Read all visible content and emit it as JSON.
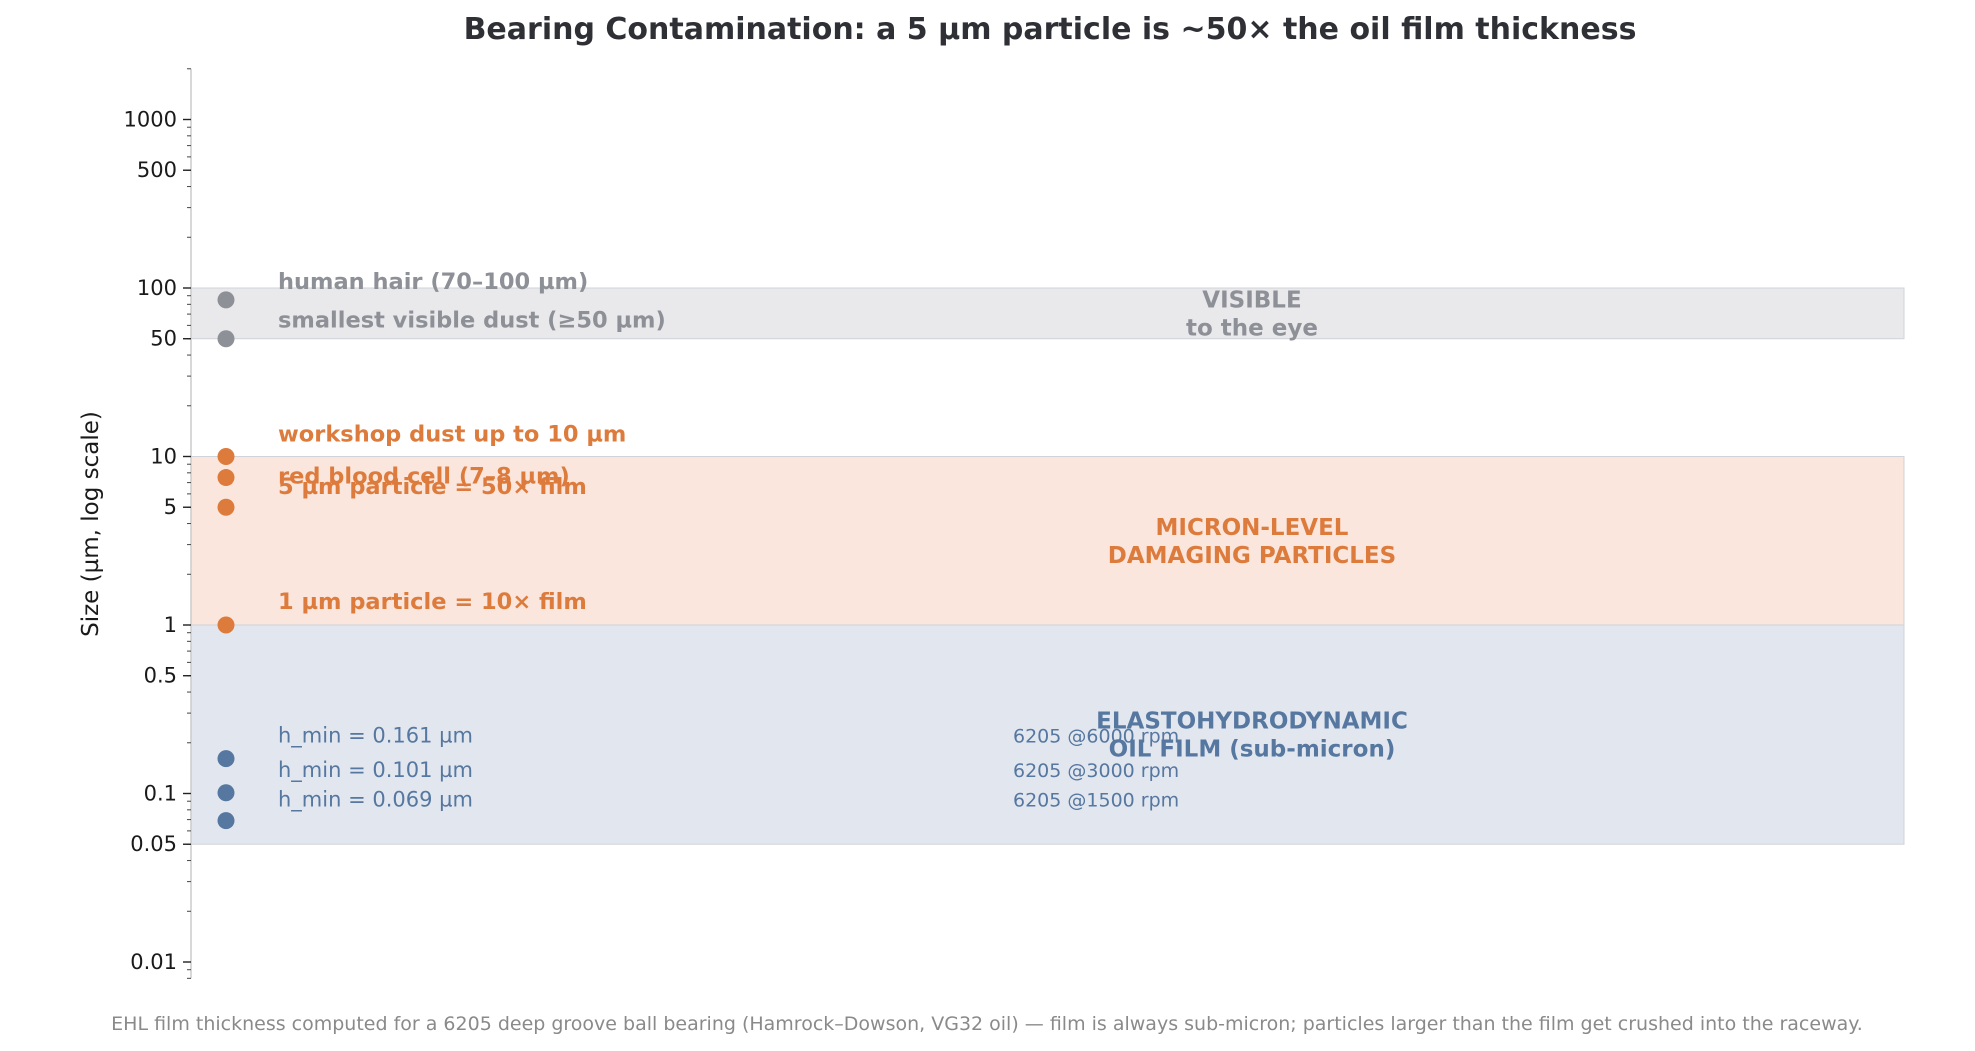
{
  "chart_data": {
    "type": "scatter",
    "title": "Bearing Contamination: a 5 µm particle is ~50× the oil film thickness",
    "ylabel": "Size (µm, log scale)",
    "yscale": "log",
    "ylim": [
      0.008,
      2000
    ],
    "yticks": [
      {
        "value": 0.01,
        "label": "0.01"
      },
      {
        "value": 0.05,
        "label": "0.05"
      },
      {
        "value": 0.1,
        "label": "0.1"
      },
      {
        "value": 0.5,
        "label": "0.5"
      },
      {
        "value": 1,
        "label": "1"
      },
      {
        "value": 5,
        "label": "5"
      },
      {
        "value": 10,
        "label": "10"
      },
      {
        "value": 50,
        "label": "50"
      },
      {
        "value": 100,
        "label": "100"
      },
      {
        "value": 500,
        "label": "500"
      },
      {
        "value": 1000,
        "label": "1000"
      }
    ],
    "bands": [
      {
        "id": "visible",
        "lines": [
          "VISIBLE",
          "to the eye"
        ],
        "from": 50,
        "to": 100,
        "fill": "#e9e9eb",
        "text_color": "#8e9098"
      },
      {
        "id": "micron",
        "lines": [
          "MICRON-LEVEL",
          "DAMAGING PARTICLES"
        ],
        "from": 1,
        "to": 10,
        "fill": "#fae6dc",
        "text_color": "#dd7b3c"
      },
      {
        "id": "film",
        "lines": [
          "ELASTOHYDRODYNAMIC",
          "OIL FILM (sub-micron)"
        ],
        "from": 0.05,
        "to": 1,
        "fill": "#e2e7ef",
        "text_color": "#5677a0"
      }
    ],
    "points": [
      {
        "label": "human hair (70–100 µm)",
        "value": 85,
        "color": "#8e9098",
        "group": "visible"
      },
      {
        "label": "smallest visible dust (≥50 µm)",
        "value": 50,
        "color": "#8e9098",
        "group": "visible"
      },
      {
        "label": "workshop dust up to 10 µm",
        "value": 10,
        "color": "#dd7b3c",
        "group": "micron"
      },
      {
        "label": "red blood cell (7–8 µm)",
        "value": 7.5,
        "color": "#dd7b3c",
        "group": "micron"
      },
      {
        "label": "5 µm particle  = 50× film",
        "value": 5,
        "color": "#dd7b3c",
        "group": "micron"
      },
      {
        "label": "1 µm particle  = 10× film",
        "value": 1,
        "color": "#dd7b3c",
        "group": "micron"
      },
      {
        "label": "h_min = 0.161 µm",
        "value": 0.161,
        "color": "#5677a0",
        "group": "film",
        "rpm": "6205 @6000 rpm"
      },
      {
        "label": "h_min = 0.101 µm",
        "value": 0.101,
        "color": "#5677a0",
        "group": "film",
        "rpm": "6205 @3000 rpm"
      },
      {
        "label": "h_min = 0.069 µm",
        "value": 0.069,
        "color": "#5677a0",
        "group": "film",
        "rpm": "6205 @1500 rpm"
      }
    ],
    "footnote": "EHL film thickness computed for a 6205 deep groove ball bearing (Hamrock–Dowson, VG32 oil) — film is always sub-micron; particles larger than the film get crushed into the raceway."
  }
}
